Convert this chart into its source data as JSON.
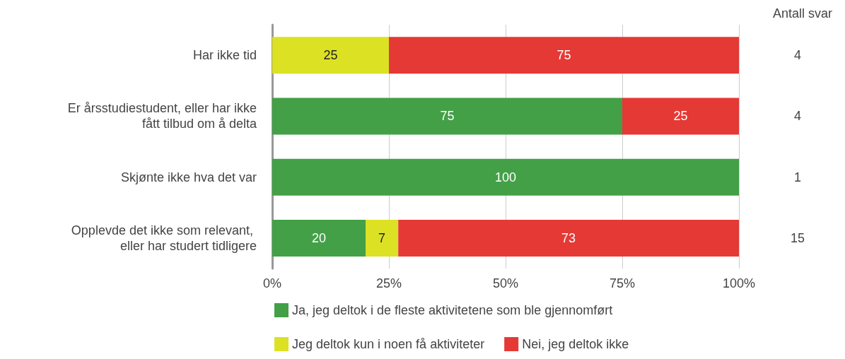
{
  "chart_data": {
    "type": "bar",
    "orientation": "horizontal",
    "stacked": true,
    "data_labels": true,
    "grid": "x",
    "legend": "bottom",
    "categories": [
      "Har ikke tid",
      "Er årsstudiestudent, eller har ikke fått tilbud om å delta",
      "Skjønte ikke hva det var",
      "Opplevde det ikke som relevant, eller har studert tidligere"
    ],
    "series": [
      {
        "name": "Ja, jeg deltok i de fleste aktivitetene som ble gjennomført",
        "color": "#43a047",
        "values": [
          null,
          75,
          100,
          20
        ]
      },
      {
        "name": "Jeg deltok kun i noen få aktiviteter",
        "color": "#dce123",
        "values": [
          25,
          null,
          null,
          7
        ]
      },
      {
        "name": "Nei, jeg deltok ikke",
        "color": "#e53935",
        "values": [
          75,
          25,
          null,
          73
        ]
      }
    ],
    "xlim": [
      0,
      100
    ],
    "xticks": [
      {
        "value": 0,
        "label": "0%"
      },
      {
        "value": 25,
        "label": "25%"
      },
      {
        "value": 50,
        "label": "50%"
      },
      {
        "value": 75,
        "label": "75%"
      },
      {
        "value": 100,
        "label": "100%"
      }
    ],
    "annotations": [
      "Antall svar",
      "4",
      "4",
      "1",
      "15"
    ]
  }
}
